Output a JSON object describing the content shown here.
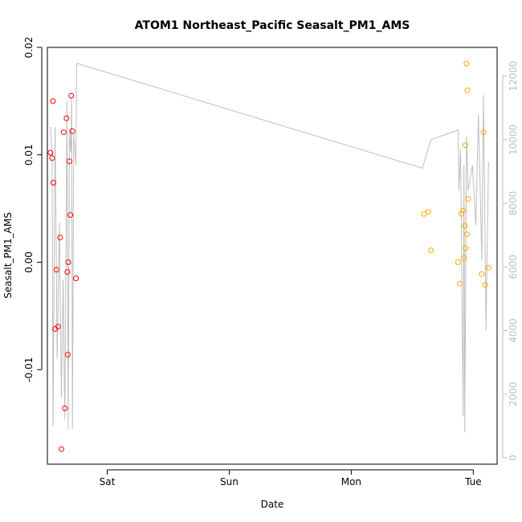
{
  "chart_data": {
    "type": "scatter",
    "title": "ATOM1 Northeast_Pacific Seasalt_PM1_AMS",
    "xlabel": "Date",
    "ylabel": "Seasalt_PM1_AMS",
    "x_ticks": [
      {
        "label": "Sat",
        "date": "2016-08-06"
      },
      {
        "label": "Sun",
        "date": "2016-08-07"
      },
      {
        "label": "Mon",
        "date": "2016-08-08"
      },
      {
        "label": "Tue",
        "date": "2016-08-09"
      }
    ],
    "xlim": [
      "2016-08-05 12:14",
      "2016-08-09 04:41"
    ],
    "ylim": [
      -0.0188,
      0.02
    ],
    "y_ticks": [
      "-0.01",
      "0.00",
      "0.01",
      "0.02"
    ],
    "y2_lim": [
      -200,
      12900
    ],
    "y2_ticks": [
      "0",
      "2000",
      "4000",
      "6000",
      "8000",
      "10000",
      "12000"
    ],
    "y2_color": "#bebebe",
    "grid": false,
    "series": [
      {
        "color": "#ff0000",
        "marker": "open-circle",
        "points": [
          [
            "2016-08-05 12:50",
            0.0102
          ],
          [
            "2016-08-05 13:10",
            0.0097
          ],
          [
            "2016-08-05 13:20",
            0.015
          ],
          [
            "2016-08-05 13:25",
            0.0074
          ],
          [
            "2016-08-05 13:45",
            -0.0062
          ],
          [
            "2016-08-05 14:00",
            -0.0007
          ],
          [
            "2016-08-05 14:20",
            -0.006
          ],
          [
            "2016-08-05 14:45",
            0.0023
          ],
          [
            "2016-08-05 15:00",
            -0.0174
          ],
          [
            "2016-08-05 15:25",
            0.0121
          ],
          [
            "2016-08-05 15:40",
            -0.0136
          ],
          [
            "2016-08-05 16:00",
            0.0134
          ],
          [
            "2016-08-05 16:10",
            -0.0009
          ],
          [
            "2016-08-05 16:15",
            -0.0086
          ],
          [
            "2016-08-05 16:20",
            0.0
          ],
          [
            "2016-08-05 16:35",
            0.0094
          ],
          [
            "2016-08-05 16:45",
            0.0044
          ],
          [
            "2016-08-05 16:55",
            0.0155
          ],
          [
            "2016-08-05 17:10",
            0.0122
          ],
          [
            "2016-08-05 17:50",
            -0.0015
          ]
        ]
      },
      {
        "color": "#ffa500",
        "marker": "open-circle",
        "points": [
          [
            "2016-08-08 14:20",
            0.0045
          ],
          [
            "2016-08-08 15:10",
            0.0047
          ],
          [
            "2016-08-08 15:40",
            0.0011
          ],
          [
            "2016-08-08 21:00",
            0.0
          ],
          [
            "2016-08-08 21:20",
            -0.002
          ],
          [
            "2016-08-08 21:40",
            0.0045
          ],
          [
            "2016-08-08 22:00",
            0.0048
          ],
          [
            "2016-08-08 22:10",
            0.0004
          ],
          [
            "2016-08-08 22:20",
            0.0034
          ],
          [
            "2016-08-08 22:25",
            0.0109
          ],
          [
            "2016-08-08 22:30",
            0.0013
          ],
          [
            "2016-08-08 22:40",
            0.0185
          ],
          [
            "2016-08-08 22:45",
            0.0026
          ],
          [
            "2016-08-08 22:50",
            0.016
          ],
          [
            "2016-08-08 23:00",
            0.0059
          ],
          [
            "2016-08-09 01:40",
            -0.0011
          ],
          [
            "2016-08-09 02:00",
            0.0121
          ],
          [
            "2016-08-09 02:20",
            -0.0021
          ],
          [
            "2016-08-09 03:00",
            -0.0005
          ]
        ]
      }
    ],
    "secondary_line": {
      "color": "#bebebe",
      "axis": "right",
      "points": [
        [
          "2016-08-05 12:50",
          10400
        ],
        [
          "2016-08-05 13:10",
          9500
        ],
        [
          "2016-08-05 13:20",
          1000
        ],
        [
          "2016-08-05 13:45",
          10400
        ],
        [
          "2016-08-05 14:10",
          3100
        ],
        [
          "2016-08-05 14:35",
          7400
        ],
        [
          "2016-08-05 15:00",
          1900
        ],
        [
          "2016-08-05 15:20",
          5600
        ],
        [
          "2016-08-05 15:40",
          1200
        ],
        [
          "2016-08-05 16:05",
          11200
        ],
        [
          "2016-08-05 16:20",
          900
        ],
        [
          "2016-08-05 16:35",
          10300
        ],
        [
          "2016-08-05 16:50",
          9600
        ],
        [
          "2016-08-05 17:00",
          11300
        ],
        [
          "2016-08-05 17:10",
          900
        ],
        [
          "2016-08-05 17:25",
          10200
        ],
        [
          "2016-08-05 17:50",
          9200
        ],
        [
          "2016-08-05 18:00",
          12400
        ],
        [
          "2016-08-08 14:00",
          9100
        ],
        [
          "2016-08-08 15:40",
          10000
        ],
        [
          "2016-08-08 21:00",
          10300
        ],
        [
          "2016-08-08 21:10",
          8400
        ],
        [
          "2016-08-08 21:30",
          9700
        ],
        [
          "2016-08-08 22:00",
          1300
        ],
        [
          "2016-08-08 22:10",
          9200
        ],
        [
          "2016-08-08 22:20",
          800
        ],
        [
          "2016-08-08 22:40",
          10100
        ],
        [
          "2016-08-08 23:00",
          8400
        ],
        [
          "2016-08-08 23:50",
          9200
        ],
        [
          "2016-08-09 00:30",
          7300
        ],
        [
          "2016-08-09 01:00",
          10800
        ],
        [
          "2016-08-09 01:20",
          8600
        ],
        [
          "2016-08-09 01:40",
          6200
        ],
        [
          "2016-08-09 02:00",
          11400
        ],
        [
          "2016-08-09 02:30",
          4000
        ],
        [
          "2016-08-09 03:00",
          9300
        ]
      ]
    }
  }
}
